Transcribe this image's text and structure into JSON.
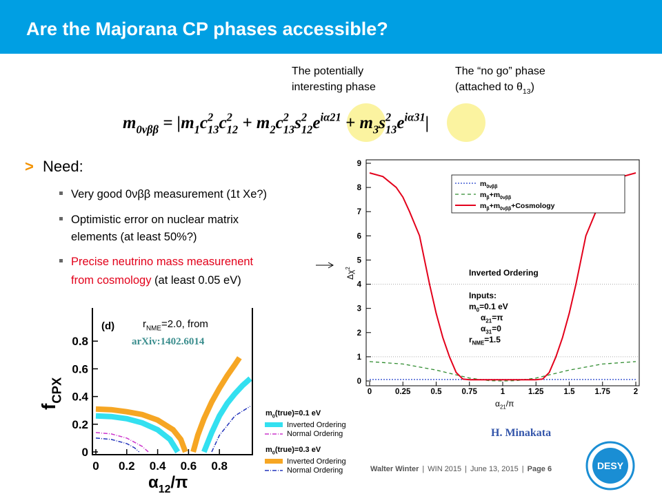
{
  "header": {
    "title": "Are the Majorana CP phases accessible?"
  },
  "formula_notes": [
    {
      "lines": [
        "The potentially",
        "interesting phase"
      ]
    },
    {
      "lines": [
        "The “no go” phase",
        [
          "(attached to θ",
          {
            "sub": "13"
          },
          ")"
        ]
      ]
    }
  ],
  "formula": [
    "m",
    {
      "sub": "0νββ"
    },
    " = |m",
    {
      "sub": "1"
    },
    "c",
    {
      "sup": "2"
    },
    {
      "sub": "13"
    },
    "c",
    {
      "sup": "2"
    },
    {
      "sub": "12"
    },
    " + m",
    {
      "sub": "2"
    },
    "c",
    {
      "sup": "2"
    },
    {
      "sub": "13"
    },
    "s",
    {
      "sup": "2"
    },
    {
      "sub": "12"
    },
    "e",
    {
      "sup": "iα21"
    },
    " + m",
    {
      "sub": "3"
    },
    "s",
    {
      "sup": "2"
    },
    {
      "sub": "13"
    },
    "e",
    {
      "sup": "iα31"
    },
    "|"
  ],
  "need": {
    "heading": "Need:",
    "items": [
      {
        "lines": [
          "Very good 0νββ measurement (1t Xe?)"
        ]
      },
      {
        "lines": [
          "Optimistic error on nuclear matrix",
          "elements (at least 50%?)"
        ]
      },
      {
        "lines": [
          [
            {
              "text": "Precise neutrino mass measurenent",
              "color": "#e2001a"
            }
          ],
          [
            {
              "text": "from cosmology",
              "color": "#e2001a"
            },
            " (at least 0.05 eV)"
          ]
        ]
      }
    ]
  },
  "right_chart": {
    "type": "line",
    "xlim": [
      0,
      2
    ],
    "ylim": [
      0,
      9
    ],
    "xticks": [
      0,
      0.25,
      0.5,
      0.75,
      1,
      1.25,
      1.5,
      1.75,
      2
    ],
    "yticks": [
      0,
      1,
      2,
      3,
      4,
      5,
      6,
      7,
      8,
      9
    ],
    "ref_lines": [
      1,
      4
    ],
    "x_label": [
      "α",
      {
        "sub": "21"
      },
      "/π"
    ],
    "y_label": [
      "Δχ",
      {
        "sup": "2"
      }
    ],
    "series": [
      {
        "name": [
          "m",
          {
            "sub": "0νββ"
          }
        ],
        "color": "#1f3fcc",
        "dash": "2 2",
        "x": [
          0,
          2
        ],
        "values": [
          0.06,
          0.06
        ]
      },
      {
        "name": [
          "m",
          {
            "sub": "β"
          },
          "+m",
          {
            "sub": "0νββ"
          }
        ],
        "color": "#2e8b2e",
        "dash": "5 4",
        "x": [
          0,
          0.25,
          0.5,
          0.75,
          0.9,
          1,
          1.1,
          1.25,
          1.5,
          1.75,
          2
        ],
        "values": [
          0.8,
          0.7,
          0.45,
          0.12,
          0.01,
          0,
          0.01,
          0.12,
          0.45,
          0.7,
          0.8
        ]
      },
      {
        "name": [
          "m",
          {
            "sub": "β"
          },
          "+m",
          {
            "sub": "0νββ"
          },
          "+Cosmology"
        ],
        "color": "#e3001b",
        "dash": "",
        "x": [
          0,
          0.1,
          0.2,
          0.25,
          0.3,
          0.375,
          0.45,
          0.5,
          0.55,
          0.6,
          0.65,
          0.7,
          0.75,
          1,
          1.25,
          1.3,
          1.35,
          1.4,
          1.45,
          1.5,
          1.55,
          1.625,
          1.7,
          1.75,
          1.8,
          1.9,
          2
        ],
        "values": [
          8.6,
          8.45,
          8.0,
          7.6,
          7.0,
          6.0,
          4.0,
          2.8,
          1.8,
          1.0,
          0.35,
          0.08,
          0.05,
          0.05,
          0.05,
          0.08,
          0.35,
          1.0,
          1.8,
          2.8,
          4.0,
          6.0,
          7.0,
          7.6,
          8.0,
          8.45,
          8.6
        ]
      }
    ],
    "ordering": "Inverted Ordering",
    "inputs": [
      "Inputs:",
      [
        "m",
        {
          "sub": "0"
        },
        "=0.1 eV"
      ],
      [
        "α",
        {
          "sub": "21"
        },
        "=π"
      ],
      [
        "α",
        {
          "sub": "31"
        },
        "=0"
      ],
      [
        "r",
        {
          "sub": "NME"
        },
        "=1.5"
      ]
    ],
    "credit": "H. Minakata"
  },
  "left_chart": {
    "type": "line",
    "panel_label": "(d)",
    "xlim": [
      0,
      1
    ],
    "ylim": [
      0,
      1
    ],
    "xticks": [
      0,
      0.2,
      0.4,
      0.6,
      0.8
    ],
    "yticks": [
      0,
      0.2,
      0.4,
      0.6,
      0.8
    ],
    "x_label": [
      "α",
      {
        "sub": "12"
      },
      "/π"
    ],
    "y_label": [
      "f",
      {
        "sub": "CPX"
      }
    ],
    "note": [
      "r",
      {
        "sub": "NME"
      },
      "=2.0, from"
    ],
    "reference": "arXiv:1402.6014",
    "legend": [
      {
        "title": [
          "m",
          {
            "sub": "0"
          },
          "(true)=0.1 eV"
        ],
        "entries": [
          {
            "label": "Inverted Ordering",
            "color": "#33e0f0",
            "style": "band"
          },
          {
            "label": "Normal Ordering",
            "color": "#cc33cc",
            "style": "dashdot"
          }
        ]
      },
      {
        "title": [
          "m",
          {
            "sub": "0"
          },
          "(true)=0.3 eV"
        ],
        "entries": [
          {
            "label": "Inverted Ordering",
            "color": "#f6a623",
            "style": "band"
          },
          {
            "label": "Normal Ordering",
            "color": "#2233bb",
            "style": "dashdot"
          }
        ]
      }
    ],
    "series": [
      {
        "color": "#f6a623",
        "style": "band",
        "x": [
          0,
          0.1,
          0.2,
          0.3,
          0.4,
          0.5,
          0.55,
          0.58
        ],
        "values": [
          0.31,
          0.305,
          0.29,
          0.27,
          0.23,
          0.16,
          0.09,
          0
        ]
      },
      {
        "color": "#f6a623",
        "style": "band",
        "x": [
          0.63,
          0.66,
          0.7,
          0.75,
          0.8,
          0.85,
          0.9,
          0.93
        ],
        "values": [
          0,
          0.12,
          0.24,
          0.36,
          0.46,
          0.55,
          0.63,
          0.68
        ]
      },
      {
        "color": "#33e0f0",
        "style": "band",
        "x": [
          0,
          0.1,
          0.2,
          0.3,
          0.4,
          0.48,
          0.53
        ],
        "values": [
          0.26,
          0.255,
          0.24,
          0.21,
          0.16,
          0.09,
          0
        ]
      },
      {
        "color": "#33e0f0",
        "style": "band",
        "x": [
          0.7,
          0.75,
          0.8,
          0.85,
          0.9,
          0.95,
          1
        ],
        "values": [
          0,
          0.14,
          0.26,
          0.35,
          0.42,
          0.48,
          0.53
        ]
      },
      {
        "color": "#cc33cc",
        "style": "dashdot",
        "x": [
          0,
          0.1,
          0.2,
          0.3,
          0.34
        ],
        "values": [
          0.14,
          0.13,
          0.1,
          0.04,
          0
        ]
      },
      {
        "color": "#2233bb",
        "style": "dashdot",
        "x": [
          0,
          0.1,
          0.2,
          0.25,
          0.28
        ],
        "values": [
          0.1,
          0.09,
          0.06,
          0.03,
          0
        ]
      },
      {
        "color": "#2233bb",
        "style": "dashdot",
        "x": [
          0.75,
          0.8,
          0.9,
          1
        ],
        "values": [
          0,
          0.12,
          0.26,
          0.33
        ]
      }
    ]
  },
  "footer": {
    "author": "Walter Winter",
    "separator": "|",
    "event": "WIN 2015",
    "date": "June 13, 2015",
    "page": "Page 6",
    "logo_text": "DESY"
  }
}
